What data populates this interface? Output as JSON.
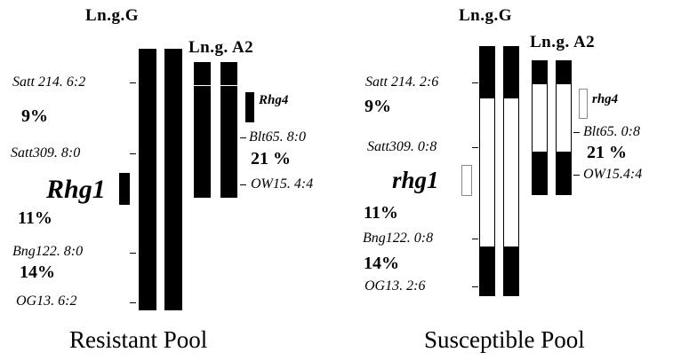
{
  "resistant_pool": {
    "label": "Resistant Pool",
    "lng_g_title": "Ln.g.G",
    "lng_a2_title": "Ln.g. A2",
    "markers_g": {
      "satt214": "Satt 214.  6:2",
      "satt309": "Satt309.  8:0",
      "bng122": "Bng122. 8:0",
      "og13": "OG13.    6:2"
    },
    "percents_g": {
      "p1": "9%",
      "p2": "11%",
      "p3": "14%"
    },
    "gene_g": "Rhg1",
    "markers_a2": {
      "blt65": "Blt65.  8:0",
      "ow15": "OW15.  4:4"
    },
    "percent_a2": "21 %",
    "gene_a2": "Rhg4"
  },
  "susceptible_pool": {
    "label": "Susceptible Pool",
    "lng_g_title": "Ln.g.G",
    "lng_a2_title": "Ln.g. A2",
    "markers_g": {
      "satt214": "Satt 214.  2:6",
      "satt309": "Satt309.  0:8",
      "bng122": "Bng122.  0:8",
      "og13": "OG13.    2:6"
    },
    "percents_g": {
      "p1": "9%",
      "p2": "11%",
      "p3": "14%"
    },
    "gene_g": "rhg1",
    "markers_a2": {
      "blt65": "Blt65.  0:8",
      "ow15": "OW15.4:4"
    },
    "percent_a2": "21 %",
    "gene_a2": "rhg4"
  }
}
